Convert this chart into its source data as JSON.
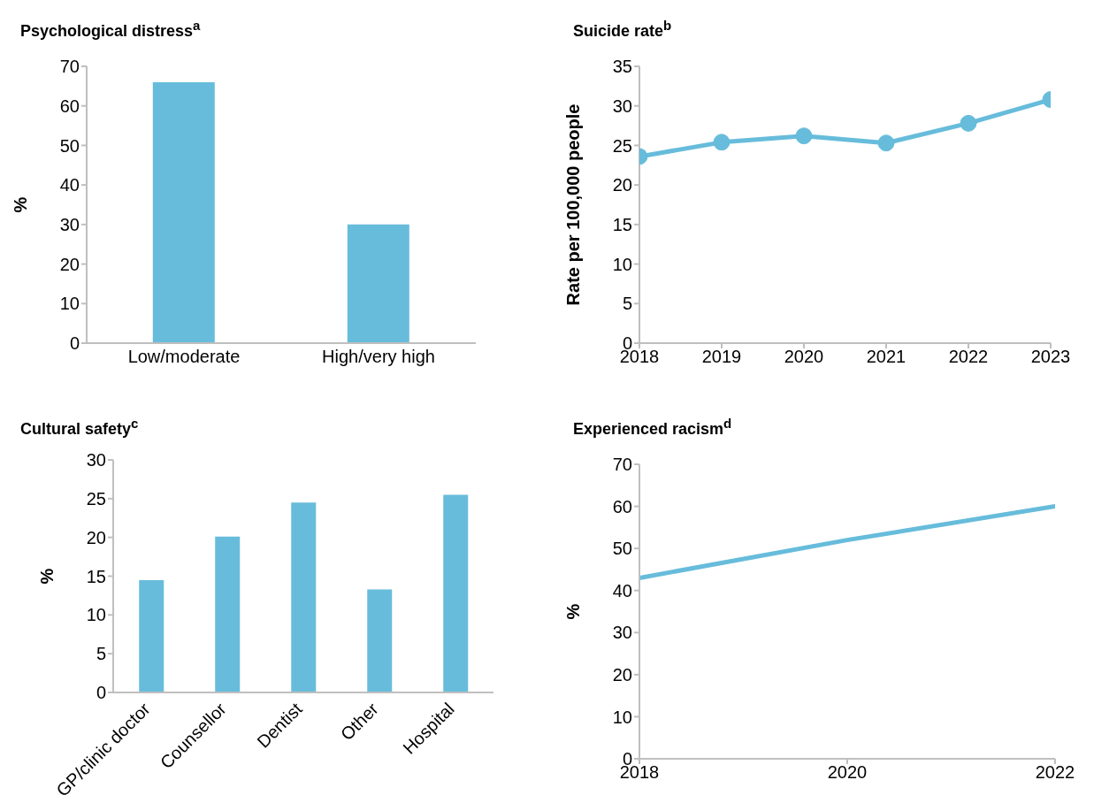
{
  "chart_data": [
    {
      "type": "bar",
      "title": "Psychological distress$^{a}$",
      "ylabel": "%",
      "categories": [
        "Low/moderate",
        "High/very high"
      ],
      "values": [
        66,
        30
      ],
      "color": "#67bcdb",
      "ylim": [
        0,
        70
      ],
      "yticks": [
        0,
        10,
        20,
        30,
        40,
        50,
        60,
        70
      ]
    },
    {
      "type": "line",
      "title": "Suicide rate$^{b}$",
      "ylabel": "Rate per 100,000 people",
      "x": [
        2018,
        2019,
        2020,
        2021,
        2022,
        2023
      ],
      "values": [
        23.6,
        25.4,
        26.2,
        25.3,
        27.8,
        30.8
      ],
      "color": "#67bcdb",
      "marker": "circle",
      "xlim": [
        2018,
        2023
      ],
      "xticks": [
        2018,
        2019,
        2020,
        2021,
        2022,
        2023
      ],
      "ylim": [
        0,
        35
      ],
      "yticks": [
        0,
        5,
        10,
        15,
        20,
        25,
        30,
        35
      ]
    },
    {
      "type": "bar",
      "title": "Cultural safety$^{c}$",
      "ylabel": "%",
      "categories": [
        "GP/clinic doctor",
        "Counsellor",
        "Dentist",
        "Other",
        "Hospital"
      ],
      "values": [
        14.5,
        20.1,
        24.5,
        13.3,
        25.5
      ],
      "color": "#67bcdb",
      "ylim": [
        0,
        30
      ],
      "yticks": [
        0,
        5,
        10,
        15,
        20,
        25,
        30
      ]
    },
    {
      "type": "line",
      "title": "Experienced racism$^{d}$",
      "ylabel": "%",
      "x": [
        2018,
        2020,
        2022
      ],
      "values": [
        43,
        52,
        60
      ],
      "color": "#67bcdb",
      "marker": "none",
      "xlim": [
        2018,
        2022
      ],
      "xticks": [
        2018,
        2020,
        2022
      ],
      "ylim": [
        0,
        70
      ],
      "yticks": [
        0,
        10,
        20,
        30,
        40,
        50,
        60,
        70
      ]
    }
  ]
}
